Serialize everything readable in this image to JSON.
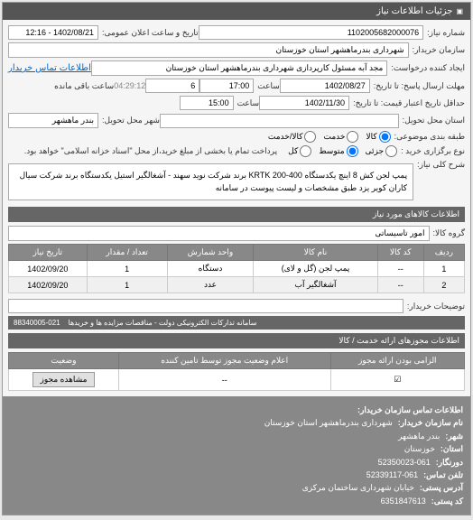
{
  "header": {
    "title": "جزئیات اطلاعات نیاز",
    "collapse_icon": "▣"
  },
  "fields": {
    "request_no_label": "شماره نیاز:",
    "request_no": "1102005682000076",
    "announce_label": "تاریخ و ساعت اعلان عمومی:",
    "announce": "1402/08/21 - 12:16",
    "buyer_label": "سازمان خریدار:",
    "buyer": "شهرداری بندرماهشهر استان خوزستان",
    "creator_label": "ایجاد کننده درخواست:",
    "creator": "مجد آبه مسئول کارپردازی شهرداری بندرماهشهر استان خوزستان",
    "contact_link": "اطلاعات تماس خریدار",
    "deadline_label": "مهلت ارسال پاسخ: تا تاریخ:",
    "deadline_date": "1402/08/27",
    "time_label": "ساعت",
    "deadline_time": "17:00",
    "remain_num": "6",
    "remain_time": "04:29:12",
    "remain_text": "ساعت باقی مانده",
    "validity_label": "حداقل تاریخ اعتبار قیمت: تا تاریخ:",
    "validity_date": "1402/11/30",
    "validity_time": "15:00",
    "delivery_state_label": "استان محل تحویل:",
    "delivery_city_label": "شهر محل تحویل:",
    "delivery_city": "بندر ماهشهر",
    "type_label": "طبقه بندی موضوعی:",
    "type_opts": {
      "goods": "کالا",
      "service": "خدمت",
      "both": "کالا/خدمت"
    },
    "priority_label": "نوع برگزاری خرید :",
    "priority_opts": {
      "low": "جزئی",
      "med": "متوسط",
      "high": "کل"
    },
    "payment_note": "پرداخت تمام یا بخشی از مبلغ خرید،از محل \"اسناد خزانه اسلامی\" خواهد بود.",
    "desc_label": "شرح کلی نیاز:",
    "desc": "پمپ لجن کش 8 اینچ یکدستگاه 400-200 KRTK برند شرکت نوید سهند - آشغالگیر استیل یکدستگاه برند شرکت سیال کاران کویر یزد طبق مشخصات و لیست پیوست در سامانه"
  },
  "goods_section": {
    "title": "اطلاعات کالاهای مورد نیاز",
    "group_label": "گروه کالا:",
    "group_value": "امور تاسیساتی",
    "columns": [
      "ردیف",
      "کد کالا",
      "نام کالا",
      "واحد شمارش",
      "تعداد / مقدار",
      "تاریخ نیاز"
    ],
    "rows": [
      [
        "1",
        "--",
        "پمپ لجن (گل و لای)",
        "دستگاه",
        "1",
        "1402/09/20"
      ],
      [
        "2",
        "--",
        "آشغالگیر آب",
        "عدد",
        "1",
        "1402/09/20"
      ]
    ],
    "buyer_notes_label": "توضیحات خریدار:",
    "footer_text": "سامانه تدارکات الکترونیکی دولت - مناقصات مزایده ها و خریدها",
    "footer_phone": "021-88340005"
  },
  "permits": {
    "title": "اطلاعات مجوزهای ارائه خدمت / کالا",
    "columns": [
      "الزامی بودن ارائه مجوز",
      "اعلام وضعیت مجوز توسط تامین کننده",
      "وضعیت"
    ],
    "row": [
      "☑",
      "--",
      "مشاهده مجوز"
    ]
  },
  "contact": {
    "title": "اطلاعات تماس سازمان خریدار:",
    "org_label": "نام سازمان خریدار:",
    "org": "شهرداری بندرماهشهر استان خوزستان",
    "city_label": "شهر:",
    "city": "بندر ماهشهر",
    "province_label": "استان:",
    "province": "خوزستان",
    "fax_label": "دورنگار:",
    "fax": "52350023-061",
    "phone_label": "تلفن تماس:",
    "phone": "52339117-061",
    "address_label": "آدرس پستی:",
    "address": "خیابان شهرداری ساختمان مرکزی",
    "postal_label": "کد پستی:",
    "postal": "6351847613"
  }
}
